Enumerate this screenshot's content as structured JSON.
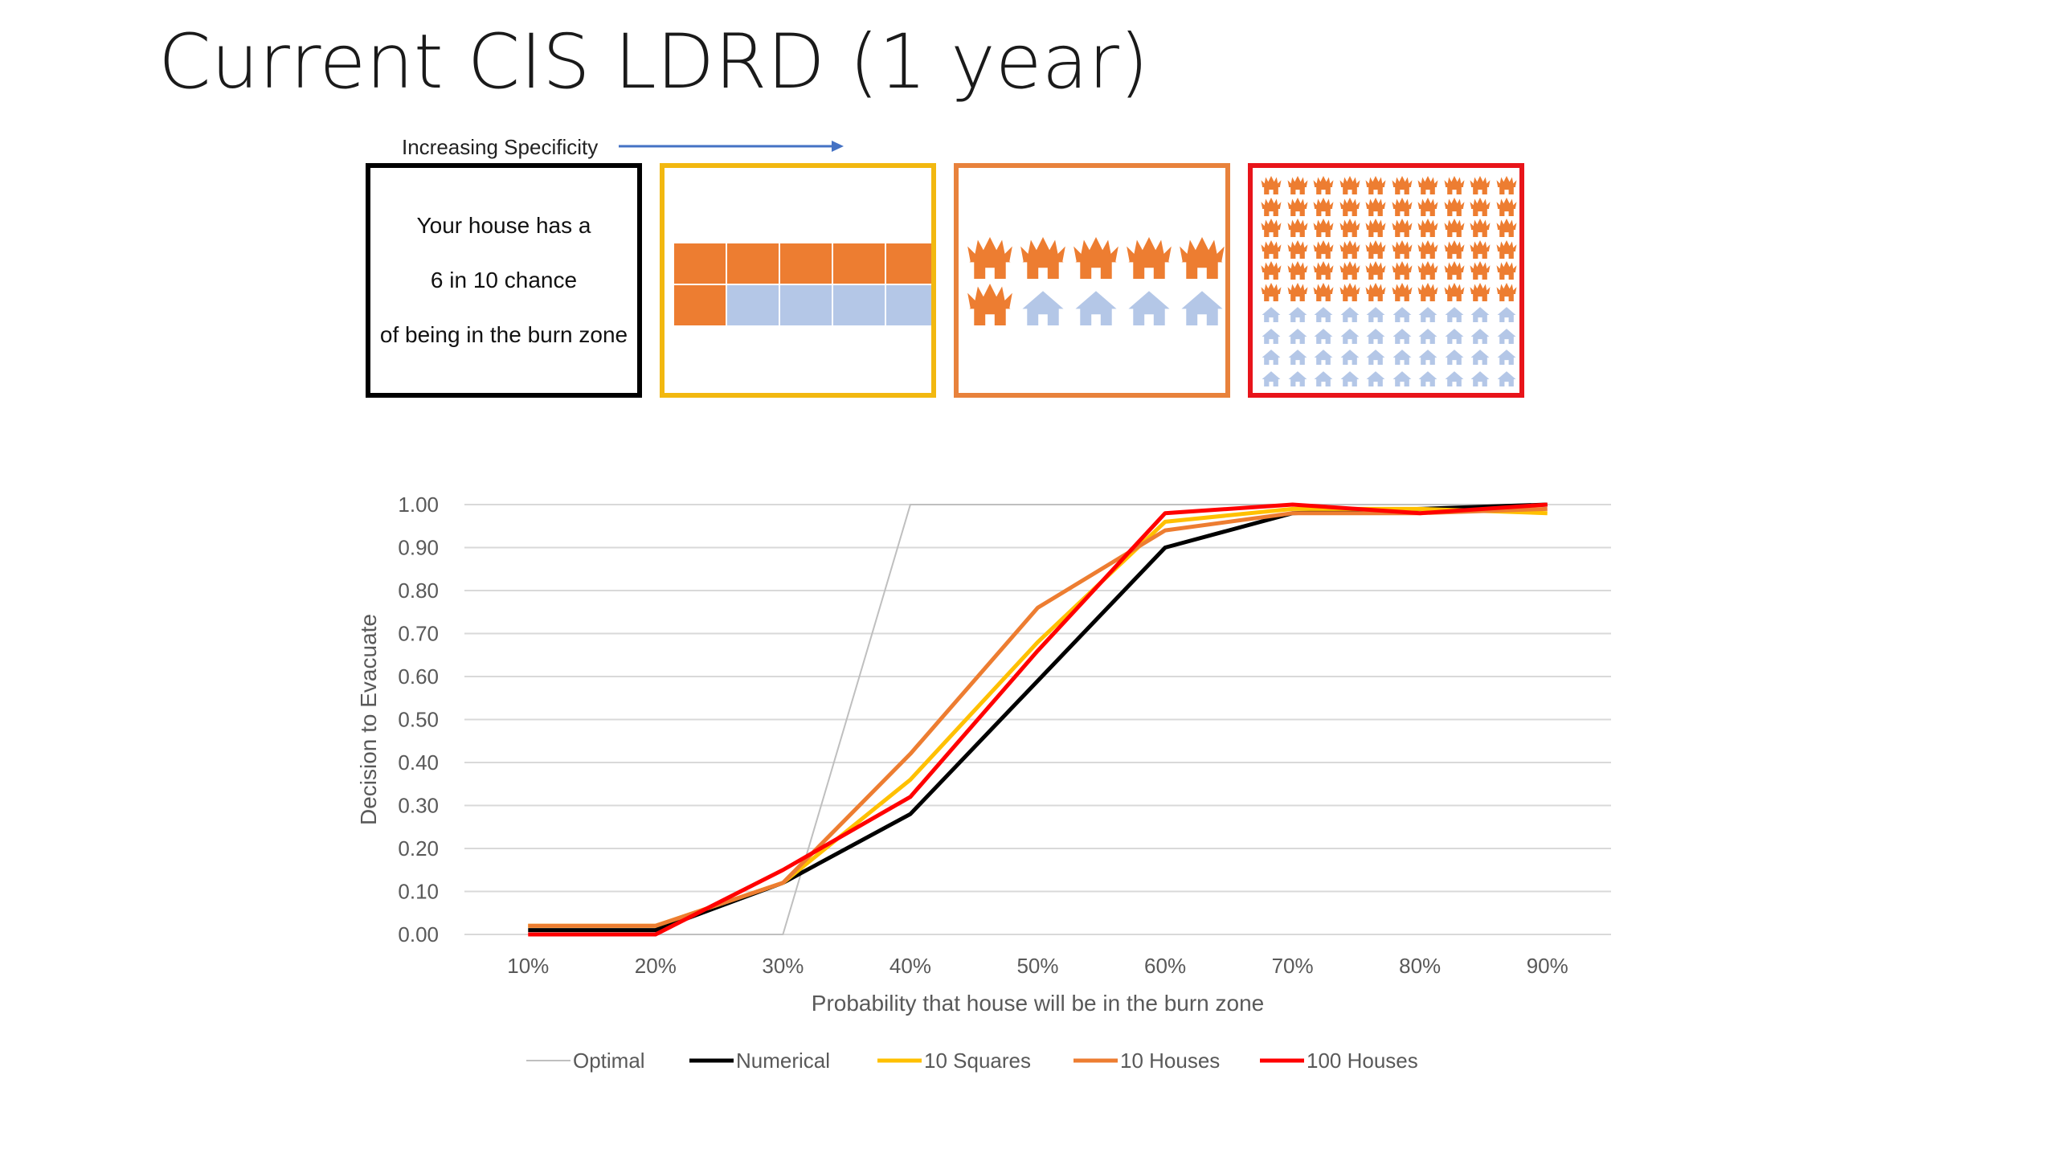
{
  "slide": {
    "title": "Current CIS LDRD (1 year)"
  },
  "specificity": {
    "label": "Increasing Specificity"
  },
  "panels": {
    "text": {
      "line1": "Your house has a",
      "line2": "6 in 10 chance",
      "line3": "of being in the burn zone"
    },
    "squares": {
      "filled": 6,
      "total": 10
    },
    "houses10": {
      "burning": 6,
      "total": 10
    },
    "houses100": {
      "burning": 60,
      "total": 100
    }
  },
  "colors": {
    "optimal": "#bfbfbf",
    "numerical": "#000000",
    "squares": "#ffc000",
    "houses10": "#ed7d31",
    "houses100": "#ff0000",
    "fill_orange": "#ed7d31",
    "fill_blue": "#b4c7e7"
  },
  "chart_data": {
    "type": "line",
    "title": "",
    "xlabel": "Probability that house will be in the burn zone",
    "ylabel": "Decision to Evacuate",
    "categories": [
      "10%",
      "20%",
      "30%",
      "40%",
      "50%",
      "60%",
      "70%",
      "80%",
      "90%"
    ],
    "ylim": [
      0,
      1
    ],
    "yticks": [
      "0.00",
      "0.10",
      "0.20",
      "0.30",
      "0.40",
      "0.50",
      "0.60",
      "0.70",
      "0.80",
      "0.90",
      "1.00"
    ],
    "grid": true,
    "legend": "bottom",
    "series": [
      {
        "name": "Optimal",
        "values": [
          0,
          0,
          0,
          1,
          1,
          1,
          1,
          1,
          1
        ]
      },
      {
        "name": "Numerical",
        "values": [
          0.01,
          0.01,
          0.12,
          0.28,
          0.59,
          0.9,
          0.98,
          0.99,
          1.0
        ]
      },
      {
        "name": "10 Squares",
        "values": [
          0.02,
          0.02,
          0.12,
          0.36,
          0.68,
          0.96,
          0.99,
          0.99,
          0.98
        ]
      },
      {
        "name": "10 Houses",
        "values": [
          0.02,
          0.02,
          0.12,
          0.42,
          0.76,
          0.94,
          0.98,
          0.98,
          0.99
        ]
      },
      {
        "name": "100 Houses",
        "values": [
          0.0,
          0.0,
          0.15,
          0.32,
          0.66,
          0.98,
          1.0,
          0.98,
          1.0
        ]
      }
    ]
  }
}
